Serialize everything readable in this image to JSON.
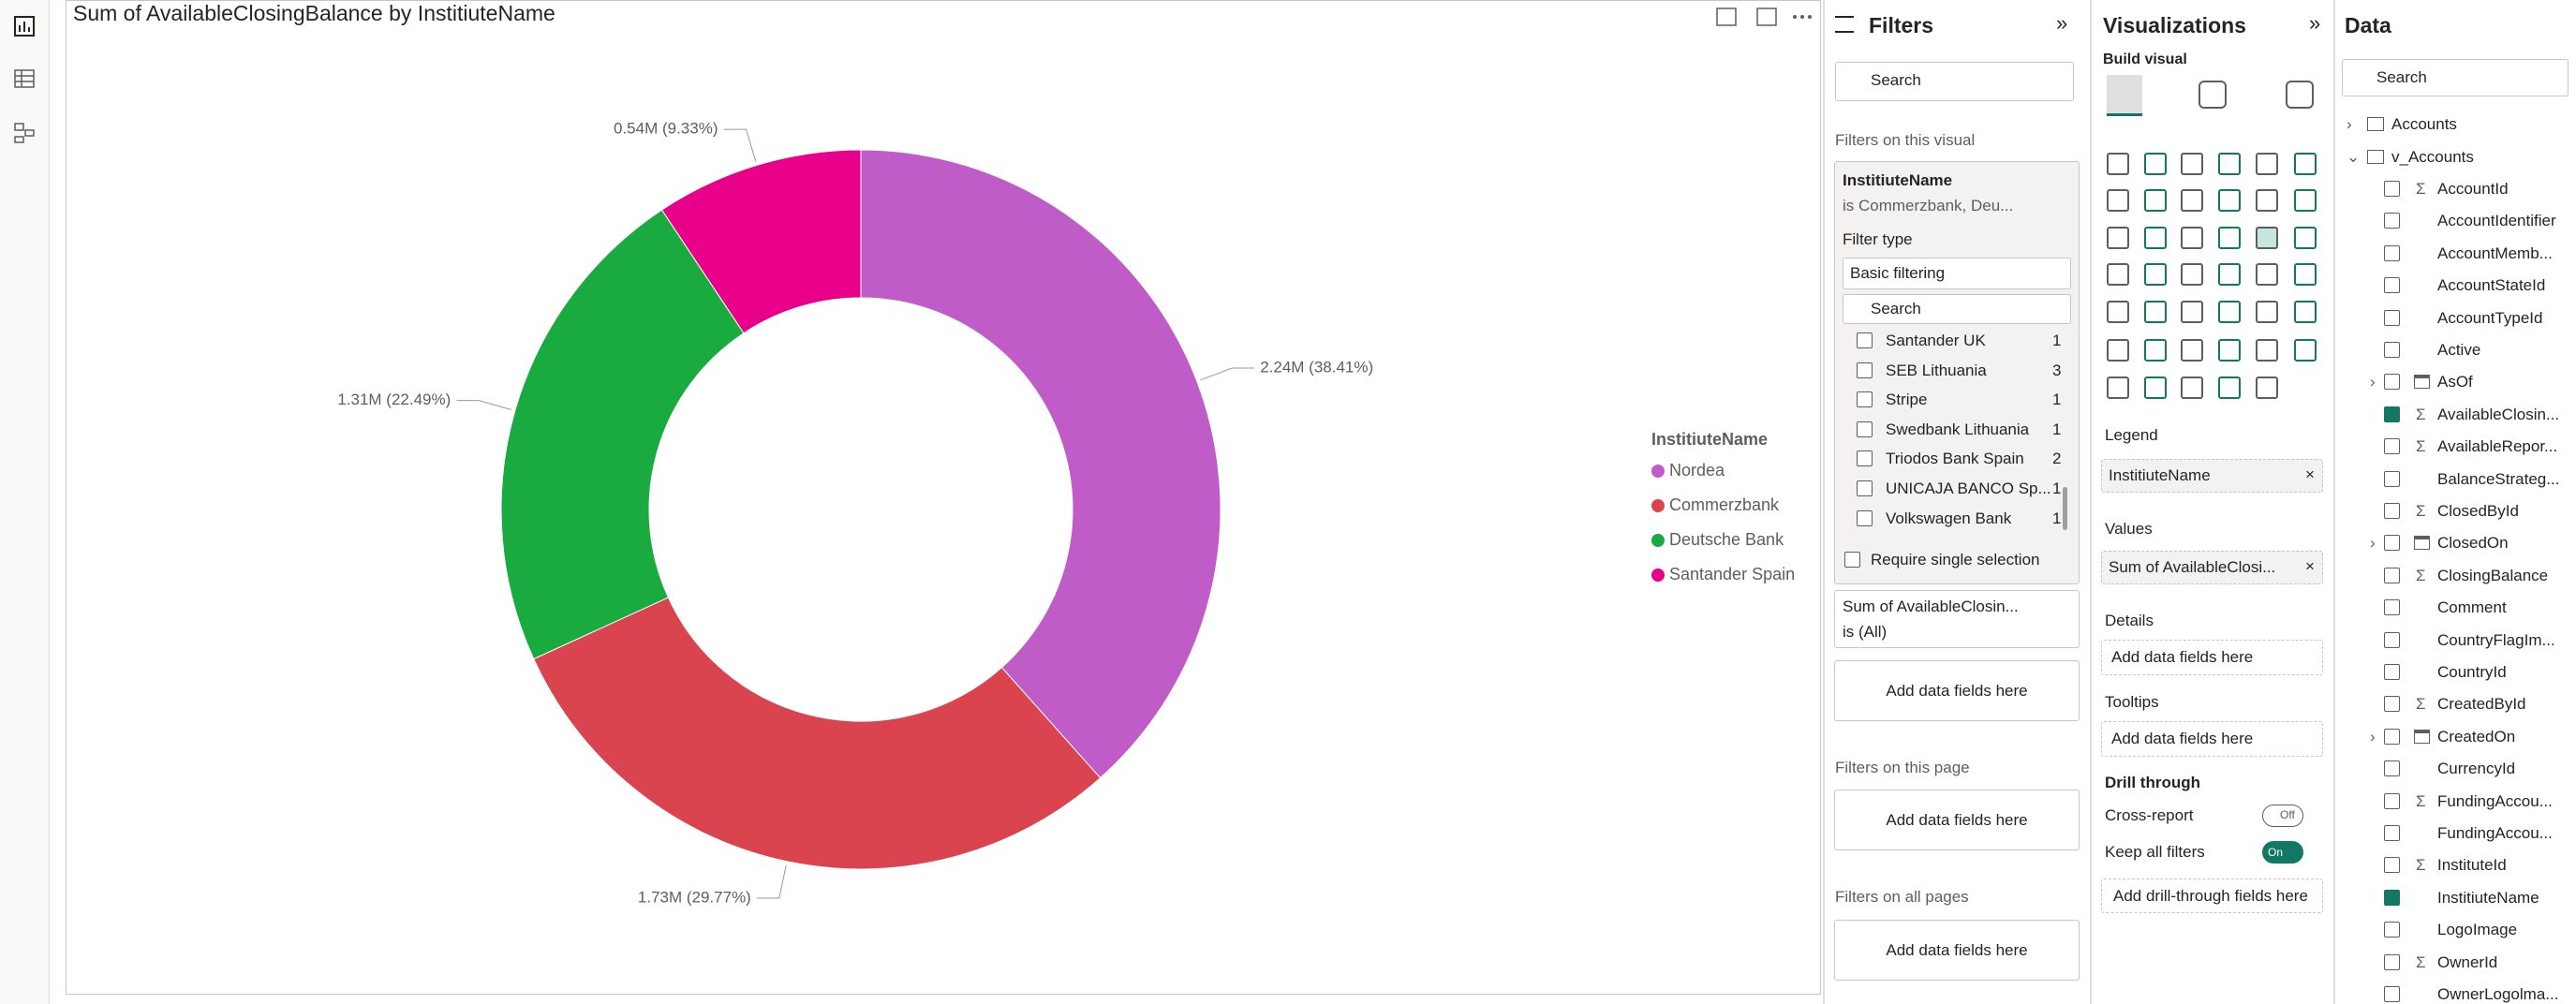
{
  "visual": {
    "type": "donut",
    "title": "Sum of AvailableClosingBalance by InstitiuteName",
    "legend_title": "InstitiuteName",
    "categories": [
      "Nordea",
      "Commerzbank",
      "Deutsche Bank",
      "Santander Spain"
    ],
    "colors": [
      "#c05cc8",
      "#d9444f",
      "#1aab40",
      "#e8008a"
    ],
    "values": [
      2.24,
      1.73,
      1.31,
      0.54
    ],
    "percents": [
      38.41,
      29.77,
      22.49,
      9.33
    ],
    "value_labels": [
      "2.24M (38.41%)",
      "1.73M (29.77%)",
      "1.31M (22.49%)",
      "0.54M (9.33%)"
    ]
  },
  "filters": {
    "title": "Filters",
    "search": "Search",
    "on_visual": "Filters on this visual",
    "card": {
      "field": "InstitiuteName",
      "summary": "is Commerzbank, Deu...",
      "filter_type_label": "Filter type",
      "filter_type": "Basic filtering",
      "search": "Search",
      "items": [
        {
          "name": "Santander UK",
          "count": 1
        },
        {
          "name": "SEB Lithuania",
          "count": 3
        },
        {
          "name": "Stripe",
          "count": 1
        },
        {
          "name": "Swedbank Lithuania",
          "count": 1
        },
        {
          "name": "Triodos Bank Spain",
          "count": 2
        },
        {
          "name": "UNICAJA BANCO Sp...",
          "count": 1
        },
        {
          "name": "Volkswagen Bank",
          "count": 1
        }
      ],
      "require_single": "Require single selection"
    },
    "card2": {
      "field": "Sum of AvailableClosin...",
      "summary": "is (All)"
    },
    "add_visual": "Add data fields here",
    "on_page": "Filters on this page",
    "add_page": "Add data fields here",
    "on_all": "Filters on all pages",
    "add_all": "Add data fields here"
  },
  "visualizations": {
    "title": "Visualizations",
    "build_visual": "Build visual",
    "wells": [
      {
        "label": "Legend",
        "field": "InstitiuteName"
      },
      {
        "label": "Values",
        "field": "Sum of AvailableClosi..."
      },
      {
        "label": "Details",
        "placeholder": "Add data fields here"
      },
      {
        "label": "Tooltips",
        "placeholder": "Add data fields here"
      }
    ],
    "drill_through": "Drill through",
    "cross_report": "Cross-report",
    "cross_report_state": "Off",
    "keep_all": "Keep all filters",
    "keep_all_state": "On",
    "add_drill": "Add drill-through fields here"
  },
  "data": {
    "title": "Data",
    "search": "Search",
    "tables": [
      "Accounts",
      "v_Accounts"
    ],
    "fields": [
      {
        "name": "AccountId",
        "sigma": true
      },
      {
        "name": "AccountIdentifier"
      },
      {
        "name": "AccountMemb..."
      },
      {
        "name": "AccountStateId"
      },
      {
        "name": "AccountTypeId"
      },
      {
        "name": "Active"
      },
      {
        "name": "AsOf",
        "date": true
      },
      {
        "name": "AvailableClosin...",
        "sigma": true,
        "checked": true
      },
      {
        "name": "AvailableRepor...",
        "sigma": true
      },
      {
        "name": "BalanceStrateg..."
      },
      {
        "name": "ClosedById",
        "sigma": true
      },
      {
        "name": "ClosedOn",
        "date": true
      },
      {
        "name": "ClosingBalance",
        "sigma": true
      },
      {
        "name": "Comment"
      },
      {
        "name": "CountryFlagIm..."
      },
      {
        "name": "CountryId"
      },
      {
        "name": "CreatedById",
        "sigma": true
      },
      {
        "name": "CreatedOn",
        "date": true
      },
      {
        "name": "CurrencyId"
      },
      {
        "name": "FundingAccou...",
        "sigma": true
      },
      {
        "name": "FundingAccou..."
      },
      {
        "name": "InstituteId",
        "sigma": true
      },
      {
        "name": "InstitiuteName",
        "checked": true
      },
      {
        "name": "LogoImage"
      },
      {
        "name": "OwnerId",
        "sigma": true
      },
      {
        "name": "OwnerLogolma..."
      }
    ]
  }
}
